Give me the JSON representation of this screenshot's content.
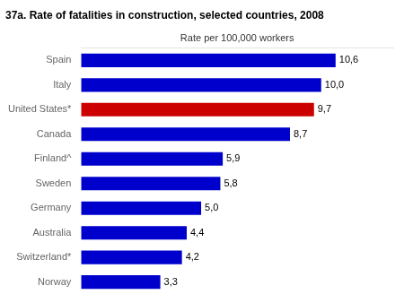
{
  "chart_data": {
    "type": "bar",
    "orientation": "horizontal",
    "title": "37a. Rate of fatalities in construction, selected countries, 2008",
    "xlabel": "Rate per 100,000 workers",
    "categories": [
      "Spain",
      "Italy",
      "United States*",
      "Canada",
      "Finland^",
      "Sweden",
      "Germany",
      "Australia",
      "Switzerland*",
      "Norway"
    ],
    "values": [
      10.6,
      10.0,
      9.7,
      8.7,
      5.9,
      5.8,
      5.0,
      4.4,
      4.2,
      3.3
    ],
    "value_labels": [
      "10,6",
      "10,0",
      "9,7",
      "8,7",
      "5,9",
      "5,8",
      "5,0",
      "4,4",
      "4,2",
      "3,3"
    ],
    "colors": [
      "#0000cc",
      "#0000cc",
      "#cc0000",
      "#0000cc",
      "#0000cc",
      "#0000cc",
      "#0000cc",
      "#0000cc",
      "#0000cc",
      "#0000cc"
    ],
    "xlim": [
      0,
      13.0
    ],
    "xticks": [],
    "grid": false,
    "tick_labels": "y",
    "data_labels": true
  }
}
